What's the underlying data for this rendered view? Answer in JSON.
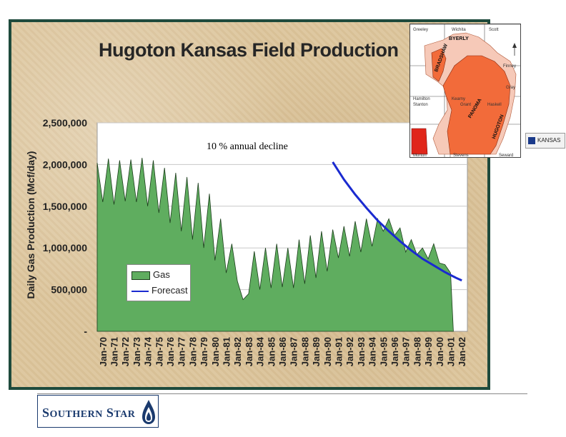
{
  "chart_data": {
    "type": "area",
    "title": "Hugoton Kansas Field Production",
    "ylabel": "Daily Gas Production (Mcf/day)",
    "xlabel": "",
    "ylim": [
      0,
      2500000
    ],
    "yticks": [
      0,
      500000,
      1000000,
      1500000,
      2000000,
      2500000
    ],
    "ytick_labels": [
      "-",
      "500,000",
      "1,000,000",
      "1,500,000",
      "2,000,000",
      "2,500,000"
    ],
    "xtick_labels": [
      "Jan-70",
      "Jan-71",
      "Jan-72",
      "Jan-73",
      "Jan-74",
      "Jan-75",
      "Jan-76",
      "Jan-77",
      "Jan-78",
      "Jan-79",
      "Jan-80",
      "Jan-81",
      "Jan-82",
      "Jan-83",
      "Jan-84",
      "Jan-85",
      "Jan-86",
      "Jan-87",
      "Jan-88",
      "Jan-89",
      "Jan-90",
      "Jan-91",
      "Jan-92",
      "Jan-93",
      "Jan-94",
      "Jan-95",
      "Jan-96",
      "Jan-97",
      "Jan-98",
      "Jan-99",
      "Jan-00",
      "Jan-01",
      "Jan-02"
    ],
    "grid": "horizontal",
    "legend": "bottom-left",
    "annotation": "10 % annual decline",
    "series": [
      {
        "name": "Gas",
        "kind": "area",
        "color": "#5fad5f",
        "x": [
          "Jan-70",
          "Jul-70",
          "Jan-71",
          "Jul-71",
          "Jan-72",
          "Jul-72",
          "Jan-73",
          "Jul-73",
          "Jan-74",
          "Jul-74",
          "Jan-75",
          "Jul-75",
          "Jan-76",
          "Jul-76",
          "Jan-77",
          "Jul-77",
          "Jan-78",
          "Jul-78",
          "Jan-79",
          "Jul-79",
          "Jan-80",
          "Jul-80",
          "Jan-81",
          "Jul-81",
          "Jan-82",
          "Jul-82",
          "Jan-83",
          "Jul-83",
          "Jan-84",
          "Jul-84",
          "Jan-85",
          "Jul-85",
          "Jan-86",
          "Jul-86",
          "Jan-87",
          "Jul-87",
          "Jan-88",
          "Jul-88",
          "Jan-89",
          "Jul-89",
          "Jan-90",
          "Jul-90",
          "Jan-91",
          "Jul-91",
          "Jan-92",
          "Jul-92",
          "Jan-93",
          "Jul-93",
          "Jan-94",
          "Jul-94",
          "Jan-95",
          "Jul-95",
          "Jan-96",
          "Jul-96",
          "Jan-97",
          "Jul-97",
          "Jan-98",
          "Jul-98",
          "Jan-99",
          "Jul-99",
          "Jan-00",
          "Jul-00",
          "Jan-01",
          "Jul-01",
          "Oct-01"
        ],
        "values": [
          2020000,
          1550000,
          2070000,
          1520000,
          2050000,
          1560000,
          2060000,
          1550000,
          2080000,
          1500000,
          2050000,
          1420000,
          1960000,
          1300000,
          1900000,
          1200000,
          1850000,
          1100000,
          1780000,
          1000000,
          1650000,
          850000,
          1350000,
          700000,
          1050000,
          600000,
          380000,
          450000,
          960000,
          500000,
          1000000,
          520000,
          1050000,
          530000,
          1000000,
          520000,
          1100000,
          570000,
          1150000,
          640000,
          1200000,
          720000,
          1220000,
          880000,
          1260000,
          900000,
          1320000,
          950000,
          1350000,
          1020000,
          1350000,
          1200000,
          1350000,
          1150000,
          1240000,
          950000,
          1100000,
          920000,
          1000000,
          870000,
          1050000,
          820000,
          800000,
          700000,
          0
        ]
      },
      {
        "name": "Forecast",
        "kind": "line",
        "color": "#1a2ad0",
        "x": [
          "Jan-91",
          "Jan-92",
          "Jan-93",
          "Jan-94",
          "Jan-95",
          "Jan-96",
          "Jan-97",
          "Jan-98",
          "Jan-99",
          "Jan-00",
          "Jan-01",
          "Jan-02",
          "Jul-02"
        ],
        "values": [
          2030000,
          1820000,
          1640000,
          1480000,
          1330000,
          1200000,
          1080000,
          970000,
          870000,
          790000,
          710000,
          640000,
          610000
        ]
      }
    ]
  },
  "map": {
    "counties": [
      "Greeley",
      "Wichita",
      "Scott",
      "Hamilton",
      "Kearny",
      "Finney",
      "Stanton",
      "Grant",
      "Haskell",
      "Gray",
      "Morton",
      "Stevens",
      "Seward"
    ],
    "fields": [
      "BYERLY",
      "BRADSHAW",
      "PANOMA",
      "HUGOTON"
    ],
    "badge": "KANSAS"
  },
  "colors": {
    "frame_border": "#1e4a3c",
    "background": "#dcc59c",
    "gas_fill": "#5fad5f",
    "forecast_line": "#1a2ad0",
    "field_fill": "#f26b3a",
    "field_light": "#f6c9b8"
  },
  "footer": {
    "logo_word1_initial": "S",
    "logo_word1_rest": "OUTHERN",
    "logo_word2_initial": "S",
    "logo_word2_rest": "TAR",
    "logo_icon": "flame-icon"
  }
}
